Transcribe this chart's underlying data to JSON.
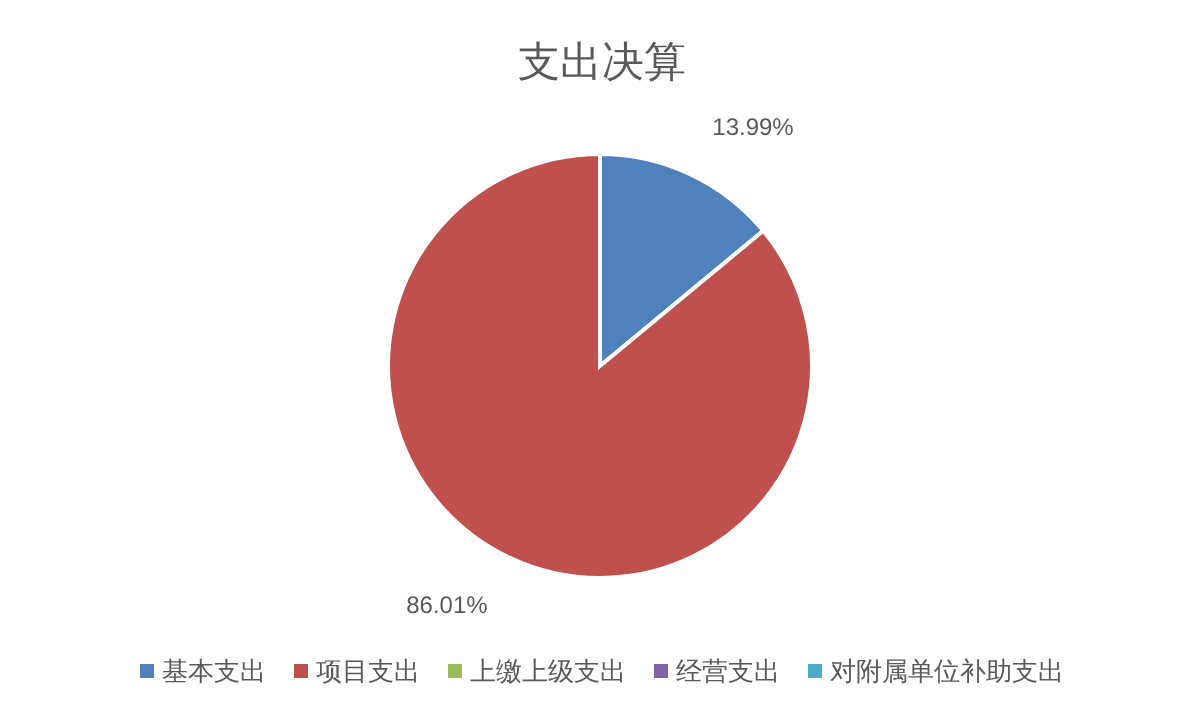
{
  "chart_data": {
    "type": "pie",
    "title": "支出决算",
    "categories": [
      "基本支出",
      "项目支出",
      "上缴上级支出",
      "经营支出",
      "对附属单位补助支出"
    ],
    "values": [
      13.99,
      86.01,
      0,
      0,
      0
    ],
    "value_labels": [
      "13.99%",
      "86.01%",
      null,
      null,
      null
    ],
    "colors": [
      "#4f81bd",
      "#c0504d",
      "#9bbb59",
      "#8064a2",
      "#4bacc6"
    ],
    "legend": "bottom"
  }
}
